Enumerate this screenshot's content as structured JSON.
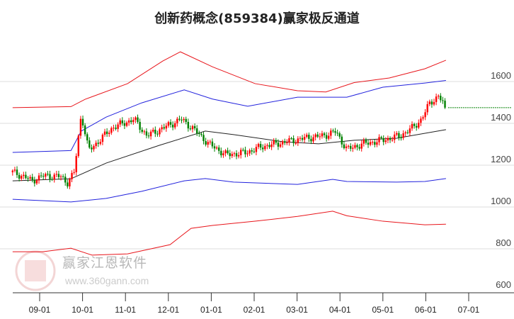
{
  "chart_data": {
    "type": "candlestick",
    "title": "创新药概念(859384)赢家极反通道",
    "x_unit": "months since 09-01",
    "x_ticks": [
      {
        "m": 0,
        "label": "09-01"
      },
      {
        "m": 1,
        "label": "10-01"
      },
      {
        "m": 2,
        "label": "11-01"
      },
      {
        "m": 3,
        "label": "12-01"
      },
      {
        "m": 4,
        "label": "01-01"
      },
      {
        "m": 5,
        "label": "02-01"
      },
      {
        "m": 6,
        "label": "03-01"
      },
      {
        "m": 7,
        "label": "04-01"
      },
      {
        "m": 8,
        "label": "05-01"
      },
      {
        "m": 9,
        "label": "06-01"
      },
      {
        "m": 10,
        "label": "07-01"
      }
    ],
    "y_ticks": [
      600,
      800,
      1000,
      1200,
      1400,
      1600
    ],
    "ylim": [
      600,
      1760
    ],
    "xlim": [
      -0.63,
      10.9
    ],
    "last_price": 1475,
    "price_path": [
      [
        -0.63,
        1166
      ],
      [
        -0.3,
        1140
      ],
      [
        -0.2,
        1125
      ],
      [
        0.1,
        1150
      ],
      [
        0.5,
        1145
      ],
      [
        0.64,
        1115
      ],
      [
        0.8,
        1160
      ],
      [
        0.86,
        1260
      ],
      [
        0.97,
        1445
      ],
      [
        1.14,
        1270
      ],
      [
        1.3,
        1300
      ],
      [
        1.7,
        1380
      ],
      [
        2.2,
        1420
      ],
      [
        2.5,
        1340
      ],
      [
        2.9,
        1380
      ],
      [
        3.3,
        1420
      ],
      [
        3.6,
        1370
      ],
      [
        3.95,
        1300
      ],
      [
        4.35,
        1250
      ],
      [
        4.8,
        1260
      ],
      [
        5.2,
        1290
      ],
      [
        5.7,
        1310
      ],
      [
        6.2,
        1330
      ],
      [
        6.6,
        1340
      ],
      [
        6.9,
        1360
      ],
      [
        7.16,
        1275
      ],
      [
        7.5,
        1300
      ],
      [
        8.0,
        1320
      ],
      [
        8.4,
        1340
      ],
      [
        8.7,
        1380
      ],
      [
        8.9,
        1420
      ],
      [
        9.1,
        1500
      ],
      [
        9.3,
        1530
      ],
      [
        9.47,
        1475
      ]
    ],
    "series": [
      {
        "name": "upper-outer",
        "color": "#e8151b",
        "points": [
          [
            -0.63,
            1475
          ],
          [
            0.73,
            1480
          ],
          [
            1.06,
            1515
          ],
          [
            2.05,
            1590
          ],
          [
            2.87,
            1698
          ],
          [
            3.28,
            1742
          ],
          [
            4.03,
            1670
          ],
          [
            5.02,
            1590
          ],
          [
            6.01,
            1556
          ],
          [
            6.67,
            1550
          ],
          [
            7.33,
            1595
          ],
          [
            8.15,
            1617
          ],
          [
            8.98,
            1661
          ],
          [
            9.47,
            1702
          ]
        ]
      },
      {
        "name": "upper-inner",
        "color": "#2222dd",
        "points": [
          [
            -0.63,
            1261
          ],
          [
            0.73,
            1270
          ],
          [
            0.97,
            1363
          ],
          [
            1.55,
            1430
          ],
          [
            2.38,
            1498
          ],
          [
            3.37,
            1560
          ],
          [
            4.03,
            1516
          ],
          [
            4.85,
            1482
          ],
          [
            6.01,
            1525
          ],
          [
            7.16,
            1525
          ],
          [
            8.0,
            1573
          ],
          [
            8.98,
            1593
          ],
          [
            9.47,
            1605
          ]
        ]
      },
      {
        "name": "middle",
        "color": "#222222",
        "points": [
          [
            -0.63,
            1125
          ],
          [
            0.73,
            1135
          ],
          [
            1.55,
            1210
          ],
          [
            2.79,
            1295
          ],
          [
            3.86,
            1363
          ],
          [
            4.52,
            1346
          ],
          [
            5.68,
            1312
          ],
          [
            6.5,
            1302
          ],
          [
            7.33,
            1319
          ],
          [
            8.32,
            1329
          ],
          [
            9.47,
            1370
          ]
        ]
      },
      {
        "name": "lower-inner",
        "color": "#2222dd",
        "points": [
          [
            -0.63,
            1037
          ],
          [
            0.73,
            1024
          ],
          [
            1.55,
            1041
          ],
          [
            2.38,
            1075
          ],
          [
            3.37,
            1125
          ],
          [
            3.86,
            1136
          ],
          [
            4.52,
            1119
          ],
          [
            6.01,
            1108
          ],
          [
            6.83,
            1132
          ],
          [
            7.16,
            1122
          ],
          [
            8.32,
            1119
          ],
          [
            8.98,
            1122
          ],
          [
            9.47,
            1136
          ]
        ]
      },
      {
        "name": "lower-outer",
        "color": "#e8151b",
        "points": [
          [
            -0.63,
            786
          ],
          [
            0.07,
            786
          ],
          [
            0.73,
            803
          ],
          [
            1.22,
            770
          ],
          [
            2.05,
            776
          ],
          [
            3.04,
            820
          ],
          [
            3.53,
            898
          ],
          [
            4.03,
            912
          ],
          [
            5.02,
            932
          ],
          [
            6.01,
            955
          ],
          [
            6.83,
            980
          ],
          [
            7.16,
            958
          ],
          [
            8.0,
            932
          ],
          [
            8.98,
            915
          ],
          [
            9.47,
            918
          ]
        ]
      }
    ],
    "up_color": "#ff0000",
    "down_color": "#008000"
  },
  "watermark": {
    "logo_chars": "江赢恩家",
    "name": "赢家江恩软件",
    "url": "www.360gann.com"
  }
}
